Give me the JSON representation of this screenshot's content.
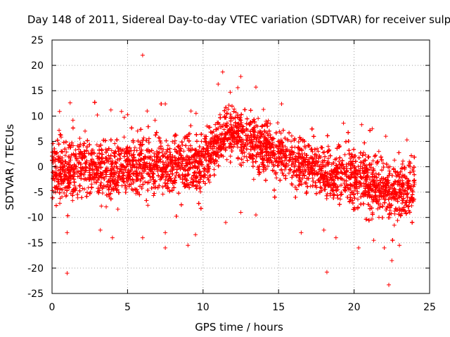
{
  "chart_data": {
    "type": "scatter",
    "title": "Day 148 of 2011, Sidereal Day-to-day VTEC variation (SDTVAR) for receiver sulp",
    "xlabel": "GPS time / hours",
    "ylabel": "SDTVAR / TECUs",
    "xlim": [
      0,
      25
    ],
    "ylim": [
      -25,
      25
    ],
    "xticks": [
      "0",
      "5",
      "10",
      "15",
      "20",
      "25"
    ],
    "yticks": [
      "25",
      "20",
      "15",
      "10",
      "5",
      "0",
      "-5",
      "-10",
      "-15",
      "-20",
      "-25"
    ],
    "grid": true,
    "marker": "+",
    "series": [
      {
        "name": "SDTVAR",
        "color": "#ff0000",
        "x_range": [
          0,
          24
        ],
        "envelope": {
          "hours": [
            0,
            1,
            2,
            3,
            4,
            5,
            6,
            7,
            8,
            9,
            10,
            10.5,
            11,
            11.5,
            12,
            13,
            14,
            15,
            16,
            17,
            18,
            19,
            20,
            21,
            22,
            22.5,
            23,
            24
          ],
          "center": [
            -0.5,
            -0.5,
            -0.3,
            -0.2,
            -0.1,
            0.0,
            0.0,
            0.2,
            0.3,
            0.5,
            0.5,
            2.5,
            5.0,
            6.5,
            6.5,
            5.5,
            4.0,
            2.5,
            1.0,
            0.0,
            -1.0,
            -1.5,
            -2.5,
            -3.0,
            -4.0,
            -4.5,
            -4.5,
            -4.0
          ],
          "spread": [
            5,
            5,
            5,
            5,
            5,
            5,
            5,
            5,
            5,
            5,
            5,
            4.5,
            4,
            4,
            4.5,
            4.5,
            4.5,
            4.5,
            4.5,
            4.5,
            4.5,
            4.5,
            5,
            5,
            5,
            5,
            5,
            5
          ]
        },
        "outliers": [
          {
            "x": 6.0,
            "y": 22.0
          },
          {
            "x": 1.0,
            "y": -21.0
          },
          {
            "x": 22.3,
            "y": -23.3
          },
          {
            "x": 18.2,
            "y": -20.8
          },
          {
            "x": 11.3,
            "y": 18.7
          },
          {
            "x": 12.5,
            "y": 17.8
          },
          {
            "x": 13.5,
            "y": 15.7
          },
          {
            "x": 0.5,
            "y": 10.9
          },
          {
            "x": 1.2,
            "y": 12.6
          },
          {
            "x": 3.0,
            "y": 10.2
          },
          {
            "x": 3.9,
            "y": 11.2
          },
          {
            "x": 4.6,
            "y": 10.9
          },
          {
            "x": 6.3,
            "y": 11.0
          },
          {
            "x": 7.5,
            "y": 12.4
          },
          {
            "x": 9.2,
            "y": 11.0
          },
          {
            "x": 11.0,
            "y": 16.3
          },
          {
            "x": 11.8,
            "y": 14.7
          },
          {
            "x": 12.3,
            "y": 15.6
          },
          {
            "x": 14.0,
            "y": 11.3
          },
          {
            "x": 15.2,
            "y": 12.4
          },
          {
            "x": 19.3,
            "y": 8.6
          },
          {
            "x": 20.5,
            "y": 8.3
          },
          {
            "x": 21.2,
            "y": 7.5
          },
          {
            "x": 22.1,
            "y": 6.0
          },
          {
            "x": 23.5,
            "y": 5.3
          },
          {
            "x": 1.0,
            "y": -13.0
          },
          {
            "x": 3.2,
            "y": -12.5
          },
          {
            "x": 4.0,
            "y": -14.0
          },
          {
            "x": 6.0,
            "y": -14.0
          },
          {
            "x": 7.5,
            "y": -16.0
          },
          {
            "x": 7.5,
            "y": -13.0
          },
          {
            "x": 9.0,
            "y": -15.5
          },
          {
            "x": 9.5,
            "y": -13.4
          },
          {
            "x": 11.5,
            "y": -11.0
          },
          {
            "x": 12.5,
            "y": -9.0
          },
          {
            "x": 13.5,
            "y": -9.5
          },
          {
            "x": 16.5,
            "y": -13.0
          },
          {
            "x": 18.0,
            "y": -12.5
          },
          {
            "x": 18.8,
            "y": -14.0
          },
          {
            "x": 20.3,
            "y": -16.0
          },
          {
            "x": 21.3,
            "y": -14.5
          },
          {
            "x": 22.0,
            "y": -16.0
          },
          {
            "x": 22.5,
            "y": -18.5
          },
          {
            "x": 23.0,
            "y": -15.5
          }
        ]
      }
    ]
  }
}
